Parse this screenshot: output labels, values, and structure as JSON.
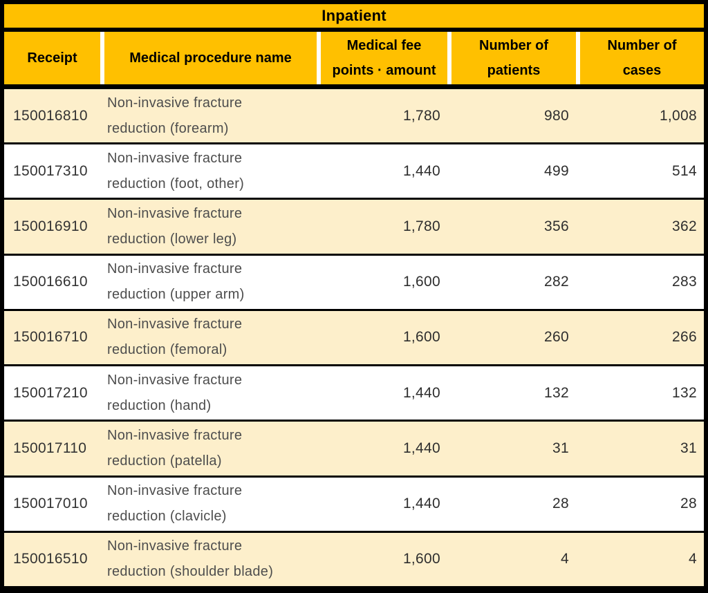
{
  "chart_data": {
    "type": "table",
    "title": "Inpatient",
    "columns": [
      "Receipt",
      "Medical procedure name",
      "Medical fee points · amount",
      "Number of patients",
      "Number of cases"
    ],
    "rows": [
      {
        "receipt": "150016810",
        "procedure": "Non-invasive fracture reduction (forearm)",
        "fee_points": "1,780",
        "patients": "980",
        "cases": "1,008"
      },
      {
        "receipt": "150017310",
        "procedure": "Non-invasive fracture reduction (foot, other)",
        "fee_points": "1,440",
        "patients": "499",
        "cases": "514"
      },
      {
        "receipt": "150016910",
        "procedure": "Non-invasive fracture reduction (lower leg)",
        "fee_points": "1,780",
        "patients": "356",
        "cases": "362"
      },
      {
        "receipt": "150016610",
        "procedure": "Non-invasive fracture reduction (upper arm)",
        "fee_points": "1,600",
        "patients": "282",
        "cases": "283"
      },
      {
        "receipt": "150016710",
        "procedure": "Non-invasive fracture reduction (femoral)",
        "fee_points": "1,600",
        "patients": "260",
        "cases": "266"
      },
      {
        "receipt": "150017210",
        "procedure": "Non-invasive fracture reduction (hand)",
        "fee_points": "1,440",
        "patients": "132",
        "cases": "132"
      },
      {
        "receipt": "150017110",
        "procedure": "Non-invasive fracture reduction (patella)",
        "fee_points": "1,440",
        "patients": "31",
        "cases": "31"
      },
      {
        "receipt": "150017010",
        "procedure": "Non-invasive fracture reduction (clavicle)",
        "fee_points": "1,440",
        "patients": "28",
        "cases": "28"
      },
      {
        "receipt": "150016510",
        "procedure": "Non-invasive fracture reduction (shoulder blade)",
        "fee_points": "1,600",
        "patients": "4",
        "cases": "4"
      }
    ],
    "layout": {
      "row_striping": "alternating cream/white starting cream",
      "grid": "black borders, white separators between header cells only"
    }
  },
  "colors": {
    "header_gold": "#FFC000",
    "row_cream": "#FDEFCB",
    "row_white": "#FFFFFF",
    "border_black": "#000000"
  }
}
